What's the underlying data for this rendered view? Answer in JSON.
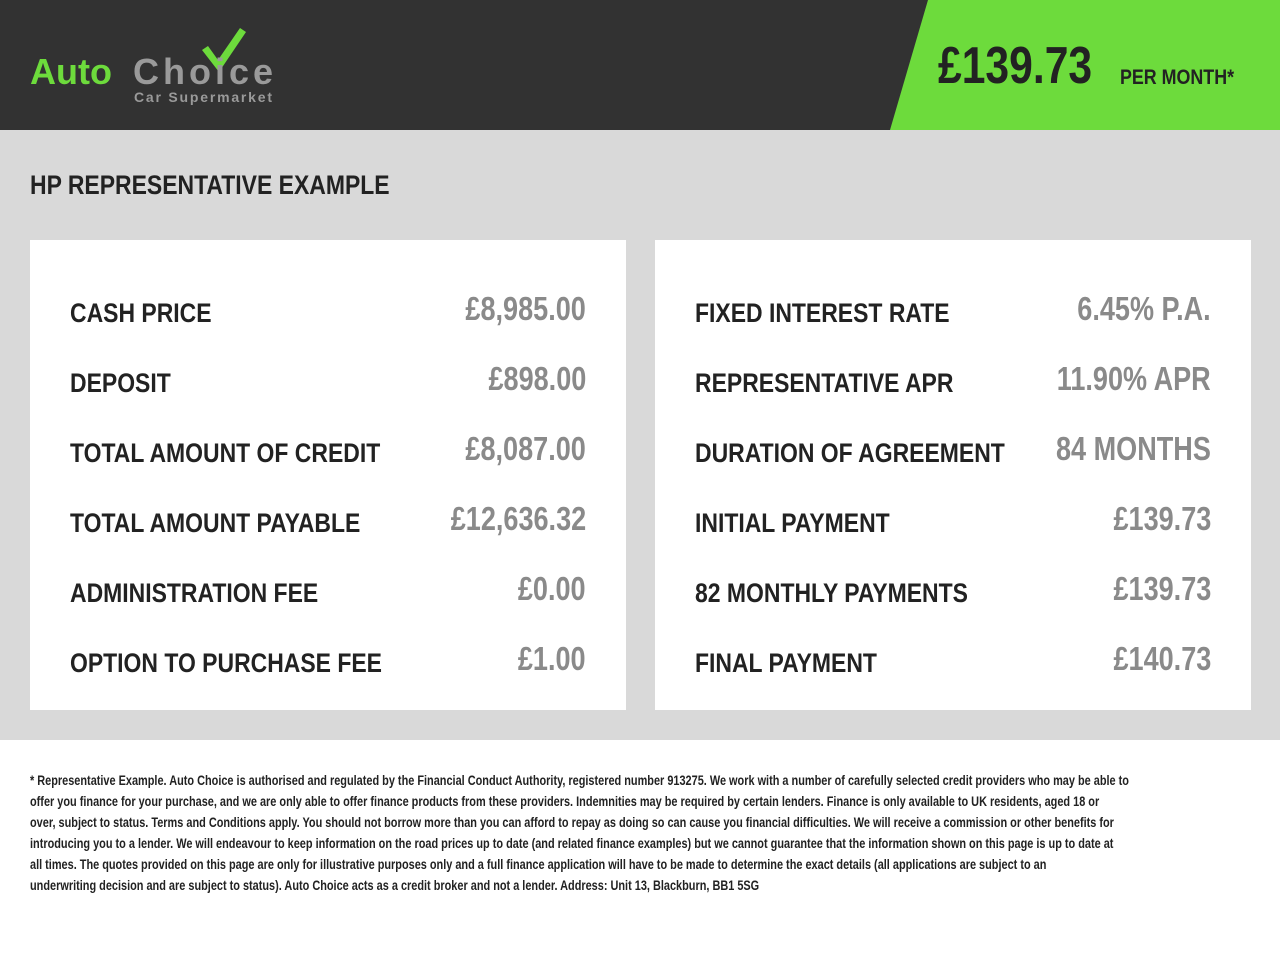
{
  "header": {
    "logo_text_auto": "Auto",
    "logo_text_choice": "Choice",
    "logo_tagline": "Car Supermarket",
    "price": "£139.73",
    "price_suffix": "PER MONTH*",
    "colors": {
      "dark": "#323232",
      "accent": "#6ddb3c"
    }
  },
  "section_title": "HP REPRESENTATIVE EXAMPLE",
  "left_card": [
    {
      "label": "CASH PRICE",
      "value": "£8,985.00"
    },
    {
      "label": "DEPOSIT",
      "value": "£898.00"
    },
    {
      "label": "TOTAL AMOUNT OF CREDIT",
      "value": "£8,087.00"
    },
    {
      "label": "TOTAL AMOUNT PAYABLE",
      "value": "£12,636.32"
    },
    {
      "label": "ADMINISTRATION FEE",
      "value": "£0.00"
    },
    {
      "label": "OPTION TO PURCHASE FEE",
      "value": "£1.00"
    }
  ],
  "right_card": [
    {
      "label": "FIXED INTEREST RATE",
      "value": "6.45% P.A."
    },
    {
      "label": "REPRESENTATIVE APR",
      "value": "11.90% APR"
    },
    {
      "label": "DURATION OF AGREEMENT",
      "value": "84 MONTHS"
    },
    {
      "label": "INITIAL PAYMENT",
      "value": "£139.73"
    },
    {
      "label": "82 MONTHLY PAYMENTS",
      "value": "£139.73"
    },
    {
      "label": "FINAL PAYMENT",
      "value": "£140.73"
    }
  ],
  "footer_lines": [
    "* Representative Example. Auto Choice is authorised and regulated by the Financial Conduct Authority, registered number 913275. We work with a number of carefully selected credit providers who may be able to",
    "offer you finance for your purchase, and we are only able to offer finance products from these providers. Indemnities may be required by certain lenders. Finance is only available to UK residents, aged 18 or",
    "over, subject to status. Terms and Conditions apply. You should not borrow more than you can afford to repay as doing so can cause you financial difficulties. We will receive a commission or other benefits for",
    "introducing you to a lender. We will endeavour to keep information on the road prices up to date (and related finance examples) but we cannot guarantee that the information shown on this page is up to date at",
    "all times. The quotes provided on this page are only for illustrative purposes only and a full finance application will have to be made to determine the exact details (all applications are subject to an",
    "underwriting decision and are subject to status). Auto Choice acts as a credit broker and not a lender. Address: Unit 13, Blackburn, BB1 5SG"
  ]
}
